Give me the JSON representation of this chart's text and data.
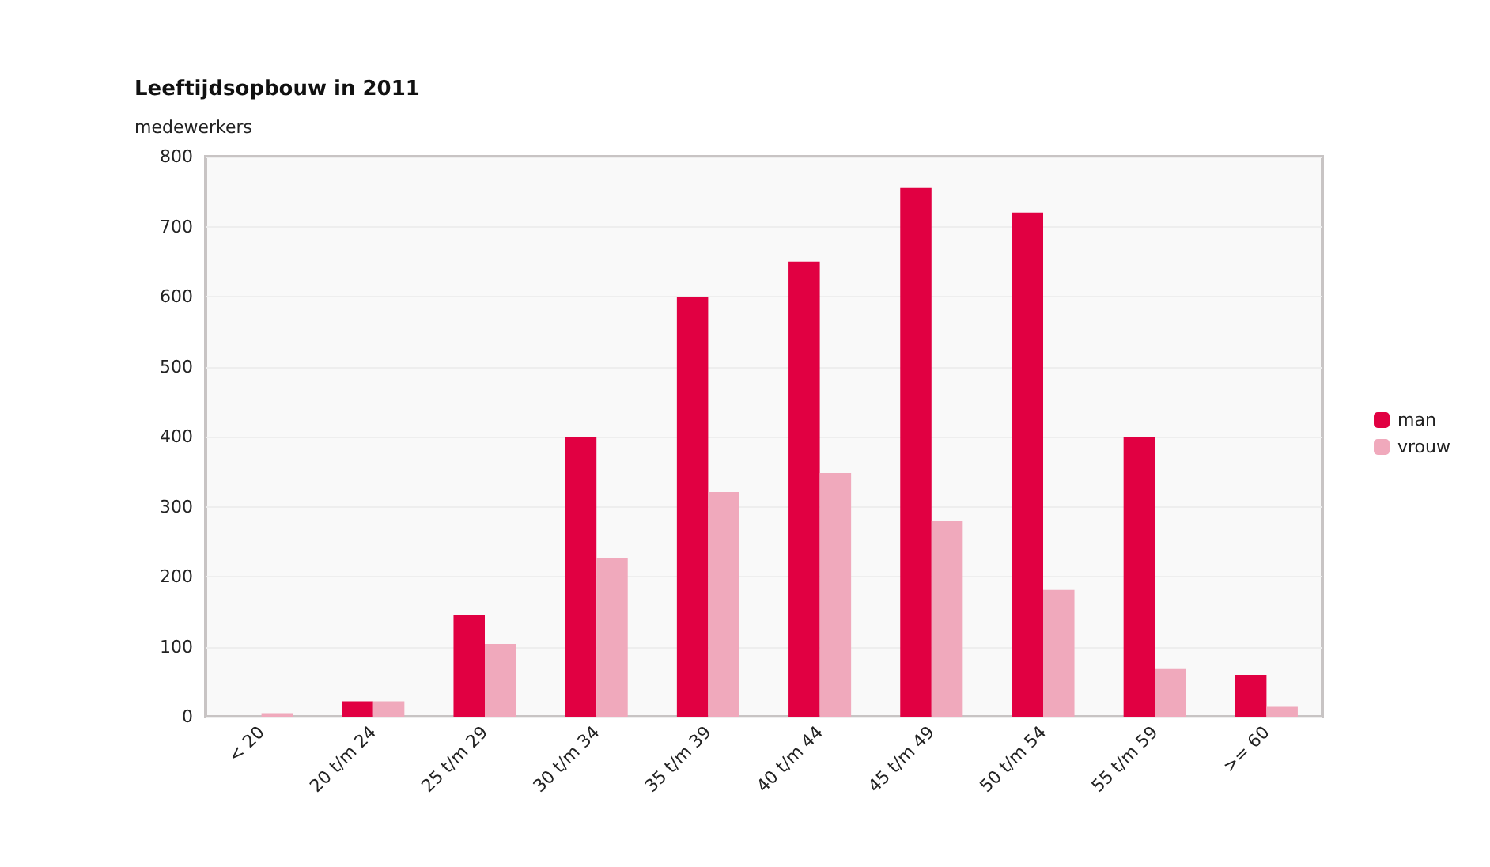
{
  "chart_data": {
    "type": "bar",
    "title": "Leeftijdsopbouw in 2011",
    "ylabel": "medewerkers",
    "categories": [
      "< 20",
      "20 t/m 24",
      "25 t/m 29",
      "30 t/m 34",
      "35 t/m 39",
      "40 t/m 44",
      "45 t/m 49",
      "50 t/m 54",
      "55 t/m 59",
      ">= 60"
    ],
    "series": [
      {
        "name": "man",
        "color": "#e10042",
        "values": [
          0,
          22,
          145,
          400,
          600,
          650,
          755,
          720,
          400,
          60
        ]
      },
      {
        "name": "vrouw",
        "color": "#f0a9bc",
        "values": [
          5,
          22,
          104,
          226,
          321,
          348,
          280,
          181,
          68,
          14
        ]
      }
    ],
    "ylim": [
      0,
      800
    ],
    "yticks": [
      0,
      100,
      200,
      300,
      400,
      500,
      600,
      700,
      800
    ],
    "grid": "y",
    "legend": "right"
  }
}
